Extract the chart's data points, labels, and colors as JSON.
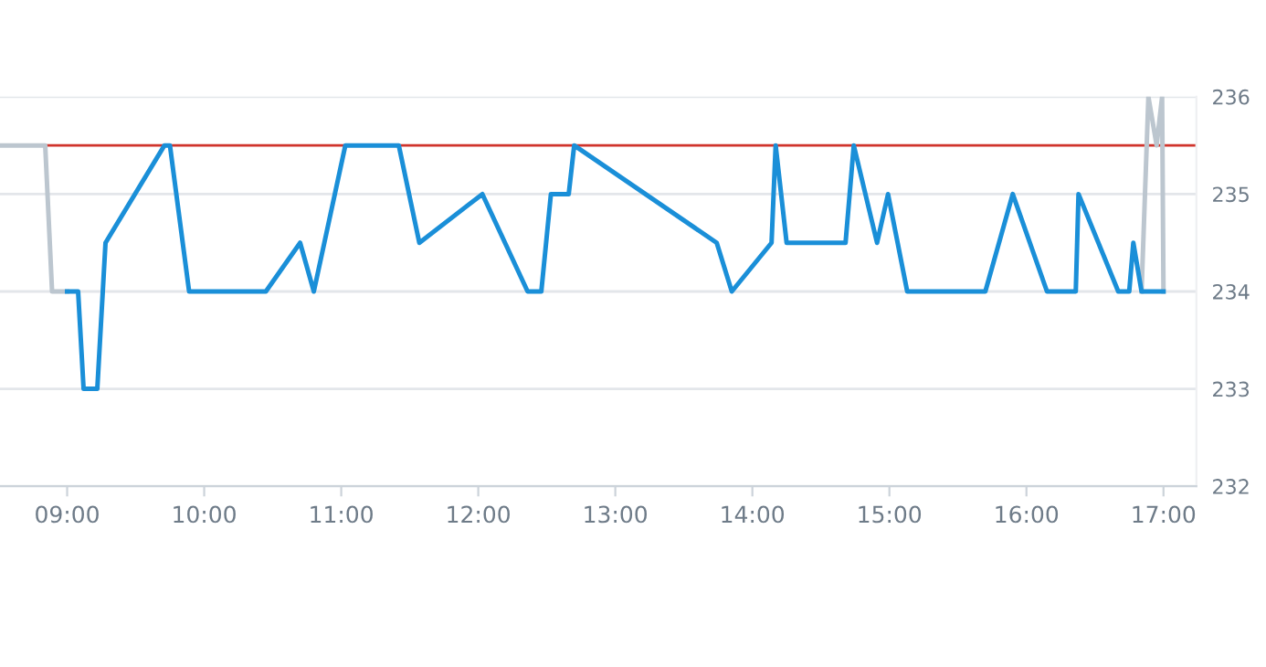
{
  "chart_data": {
    "type": "line",
    "series": [
      {
        "color": "#bcc6cf",
        "x": [
          8.51,
          8.84,
          8.89,
          9.0
        ],
        "values": [
          235.5,
          235.5,
          234,
          234
        ]
      },
      {
        "color": "#bcc6cf",
        "x": [
          16.84,
          16.89,
          16.95,
          16.99,
          17.0
        ],
        "values": [
          234,
          236,
          235.5,
          236,
          234
        ]
      },
      {
        "color": "#1a8fd8",
        "x": [
          9.0,
          9.08,
          9.12,
          9.22,
          9.28,
          9.71,
          9.75,
          9.89,
          10.45,
          10.7,
          10.8,
          11.03,
          11.42,
          11.57,
          12.03,
          12.36,
          12.46,
          12.53,
          12.66,
          12.7,
          13.74,
          13.85,
          14.14,
          14.17,
          14.25,
          14.68,
          14.74,
          14.91,
          14.99,
          15.13,
          15.7,
          15.9,
          16.15,
          16.36,
          16.38,
          16.67,
          16.75,
          16.78,
          16.84,
          17.0
        ],
        "values": [
          234,
          234,
          233,
          233,
          234.5,
          235.5,
          235.5,
          234,
          234,
          234.5,
          234,
          235.5,
          235.5,
          234.5,
          235,
          234,
          234,
          235,
          235,
          235.5,
          234.5,
          234,
          234.5,
          235.5,
          234.5,
          234.5,
          235.5,
          234.5,
          235,
          234,
          234,
          235,
          234,
          234,
          235,
          234,
          234,
          234.5,
          234,
          234
        ]
      }
    ],
    "xlim": [
      8.51,
      17.24
    ],
    "xticks": [
      {
        "value": 9,
        "label": "09:00"
      },
      {
        "value": 10,
        "label": "10:00"
      },
      {
        "value": 11,
        "label": "11:00"
      },
      {
        "value": 12,
        "label": "12:00"
      },
      {
        "value": 13,
        "label": "13:00"
      },
      {
        "value": 14,
        "label": "14:00"
      },
      {
        "value": 15,
        "label": "15:00"
      },
      {
        "value": 16,
        "label": "16:00"
      },
      {
        "value": 17,
        "label": "17:00"
      }
    ],
    "ylim": [
      232,
      236
    ],
    "yticks": [
      232,
      233,
      234,
      235,
      236
    ],
    "ref_lines": [
      {
        "axis": "y",
        "value": 235.5,
        "color": "#d0342c"
      }
    ],
    "grid": "y",
    "marker": "none",
    "line_style": "solid",
    "legend": false
  }
}
